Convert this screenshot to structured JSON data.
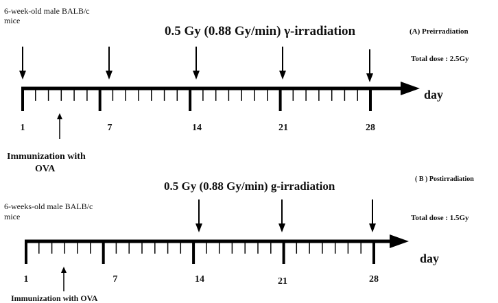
{
  "panelA": {
    "mice_line1": "6-week-old male BALB/c",
    "mice_line2": "mice",
    "irradiation_label": "0.5 Gy  (0.88 Gy/min) γ-irradiation",
    "panel_label": "(A)  Preirradiation",
    "total_dose": "Total dose   : 2.5Gy",
    "axis_unit": "day",
    "day_labels": [
      "1",
      "7",
      "14",
      "21",
      "28"
    ],
    "immunization_line1": "Immunization with",
    "immunization_line2": "OVA"
  },
  "panelB": {
    "irradiation_label": "0.5 Gy  (0.88 Gy/min) g-irradiation",
    "panel_label": "( B ) Postirradiation",
    "mice_line1": "6-weeks-old male BALB/c",
    "mice_line2": "mice",
    "total_dose": "Total dose   : 1.5Gy",
    "axis_unit": "day",
    "day_labels": [
      "1",
      "7",
      "14",
      "21",
      "28"
    ],
    "immunization_label": "Immunization with  OVA"
  }
}
